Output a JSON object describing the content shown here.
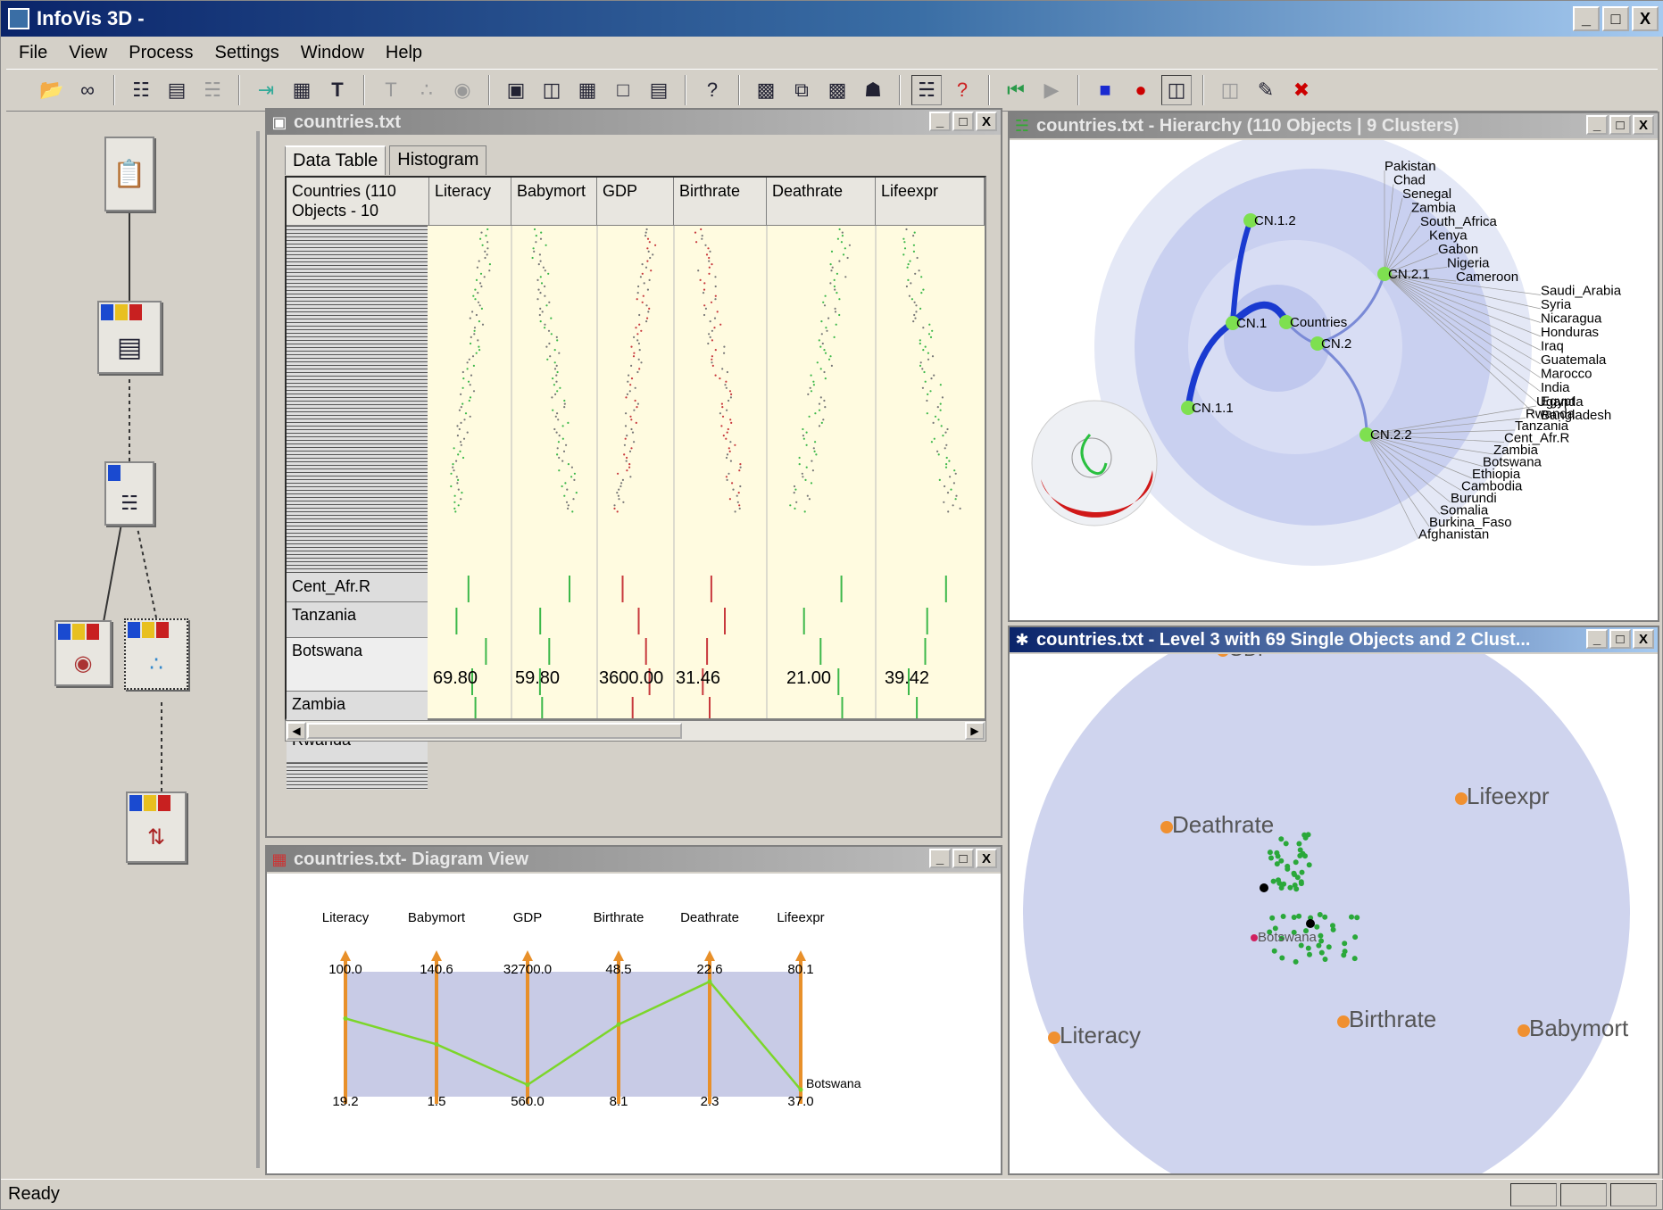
{
  "app": {
    "title": "InfoVis 3D -"
  },
  "window_buttons": [
    "_",
    "□",
    "X"
  ],
  "menu": [
    "File",
    "View",
    "Process",
    "Settings",
    "Window",
    "Help"
  ],
  "toolbar_icons": [
    "open-folder-icon",
    "glasses-icon",
    "hierarchy-icon",
    "table-icon",
    "tree-icon",
    "arrow-in-icon",
    "grid-icon",
    "text-T-icon",
    "text-sub-icon",
    "scatter-icon",
    "globe-icon",
    "view1-icon",
    "view2-icon",
    "view3-icon",
    "view4-icon",
    "view5-icon",
    "help-icon",
    "small-window-icon",
    "copy-window-icon",
    "save-icon",
    "binoculars-icon",
    "tree-select-icon",
    "question-cursor-icon",
    "rewind-icon",
    "play-icon",
    "stop-icon",
    "record-icon",
    "frames-icon",
    "stack-icon",
    "export-icon",
    "pin-icon"
  ],
  "table_window": {
    "title": "countries.txt",
    "tabs": [
      "Data Table",
      "Histogram"
    ],
    "columns": [
      {
        "label": "Countries  (110 Objects - 10",
        "color": ""
      },
      {
        "label": "Literacy",
        "color": "#3cb84a"
      },
      {
        "label": "Babymort",
        "color": "#3cb84a"
      },
      {
        "label": "GDP",
        "color": "#c8393d"
      },
      {
        "label": "Birthrate",
        "color": "#c8393d"
      },
      {
        "label": "Deathrate",
        "color": "#3cb84a"
      },
      {
        "label": "Lifeexpr",
        "color": "#3cb84a"
      }
    ],
    "rows": [
      "Cent_Afr.R",
      "Tanzania",
      "Botswana",
      "Zambia",
      "Rwanda"
    ],
    "selected_values": [
      "69.80",
      "59.80",
      "3600.00",
      "31.46",
      "21.00",
      "39.42"
    ]
  },
  "diagram_window": {
    "title": "countries.txt- Diagram View",
    "axes": [
      {
        "name": "Literacy",
        "max": "100.0",
        "min": "19.2",
        "value": 69.8,
        "vmax": 100,
        "vmin": 19.2
      },
      {
        "name": "Babymort",
        "max": "140.6",
        "min": "1.5",
        "value": 59.8,
        "vmax": 140.6,
        "vmin": 1.5
      },
      {
        "name": "GDP",
        "max": "32700.0",
        "min": "560.0",
        "value": 3600,
        "vmax": 32700,
        "vmin": 560
      },
      {
        "name": "Birthrate",
        "max": "48.5",
        "min": "8.1",
        "value": 31.46,
        "vmax": 48.5,
        "vmin": 8.1
      },
      {
        "name": "Deathrate",
        "max": "22.6",
        "min": "2.3",
        "value": 21.0,
        "vmax": 22.6,
        "vmin": 2.3
      },
      {
        "name": "Lifeexpr",
        "max": "80.1",
        "min": "37.0",
        "value": 39.42,
        "vmax": 80.1,
        "vmin": 37.0
      }
    ],
    "series_label": "Botswana",
    "line_color": "#7cd62a",
    "axis_color": "#e8902a"
  },
  "hierarchy_window": {
    "title": "countries.txt - Hierarchy (110 Objects | 9 Clusters)",
    "nodes": [
      "Countries",
      "CN.1",
      "CN.2",
      "CN.1.1",
      "CN.1.2",
      "CN.2.1",
      "CN.2.2"
    ],
    "leaves_top": [
      "Pakistan",
      "Chad",
      "Senegal",
      "Zambia",
      "South_Africa",
      "Kenya",
      "Gabon",
      "Nigeria",
      "Cameroon",
      "Saudi_Arabia",
      "Syria",
      "Nicaragua",
      "Honduras",
      "Iraq",
      "Guatemala",
      "Marocco",
      "India",
      "Egypt",
      "Bangladesh"
    ],
    "leaves_bottom": [
      "Uganda",
      "Rwanda",
      "Tanzania",
      "Cent_Afr.R",
      "Zambia",
      "Botswana",
      "Ethiopia",
      "Cambodia",
      "Burundi",
      "Somalia",
      "Burkina_Faso",
      "Afghanistan"
    ]
  },
  "level_window": {
    "title": "countries.txt - Level 3 with 69 Single Objects and 2 Clust...",
    "axis_labels": [
      "GDP",
      "Lifeexpr",
      "Deathrate",
      "Literacy",
      "Birthrate",
      "Babymort"
    ],
    "point_label": "Botswana"
  },
  "status": {
    "text": "Ready"
  }
}
